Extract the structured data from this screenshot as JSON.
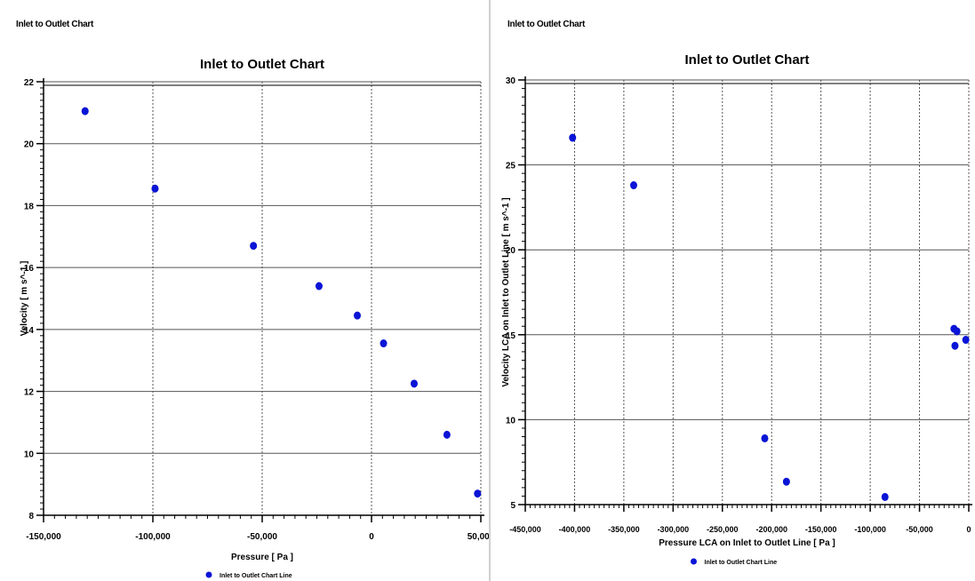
{
  "colors": {
    "marker": "#0a14d6",
    "grid": "#555555",
    "axis": "#000000"
  },
  "charts": [
    {
      "window_title": "Inlet to Outlet Chart",
      "chart_data": {
        "type": "scatter",
        "title": "Inlet to Outlet Chart",
        "xlabel": "Pressure [ Pa ]",
        "ylabel": "Velocity [ m s^-1 ]",
        "xlim": [
          -150000,
          50000
        ],
        "ylim": [
          8,
          22
        ],
        "xticks": [
          -150000,
          -100000,
          -50000,
          0,
          50000
        ],
        "xtick_labels": [
          "-150,000",
          "-100,000",
          "-50,000",
          "0",
          "50,000"
        ],
        "yticks": [
          8,
          10,
          12,
          14,
          16,
          18,
          20,
          22
        ],
        "ytick_labels": [
          "8",
          "10",
          "12",
          "14",
          "16",
          "18",
          "20",
          "22"
        ],
        "grid": true,
        "legend": "bottom-center",
        "series": [
          {
            "name": "Inlet to Outlet Chart Line",
            "x": [
              -131000,
              -99000,
              -54000,
              -24000,
              -6500,
              5500,
              19500,
              34500,
              48500
            ],
            "y": [
              21.05,
              18.55,
              16.7,
              15.4,
              14.45,
              13.55,
              12.25,
              10.6,
              8.7
            ]
          }
        ]
      }
    },
    {
      "window_title": "Inlet to Outlet Chart",
      "chart_data": {
        "type": "scatter",
        "title": "Inlet to Outlet Chart",
        "xlabel": "Pressure LCA on Inlet to Outlet Line [ Pa ]",
        "ylabel": "Velocity LCA on Inlet to Outlet Line [ m s^-1 ]",
        "xlim": [
          -450000,
          0
        ],
        "ylim": [
          5,
          30
        ],
        "xticks": [
          -450000,
          -400000,
          -350000,
          -300000,
          -250000,
          -200000,
          -150000,
          -100000,
          -50000,
          0
        ],
        "xtick_labels": [
          "-450,000",
          "-400,000",
          "-350,000",
          "-300,000",
          "-250,000",
          "-200,000",
          "-150,000",
          "-100,000",
          "-50,000",
          "0"
        ],
        "yticks": [
          5,
          10,
          15,
          20,
          25,
          30
        ],
        "ytick_labels": [
          "5",
          "10",
          "15",
          "20",
          "25",
          "30"
        ],
        "grid": true,
        "legend": "bottom-center",
        "series": [
          {
            "name": "Inlet to Outlet Chart Line",
            "x": [
              -402000,
              -340000,
              -207000,
              -185000,
              -85000,
              -15000,
              -12000,
              -14000,
              -3000
            ],
            "y": [
              26.6,
              23.8,
              8.9,
              6.35,
              5.45,
              15.35,
              15.2,
              14.35,
              14.7
            ]
          }
        ]
      }
    }
  ]
}
